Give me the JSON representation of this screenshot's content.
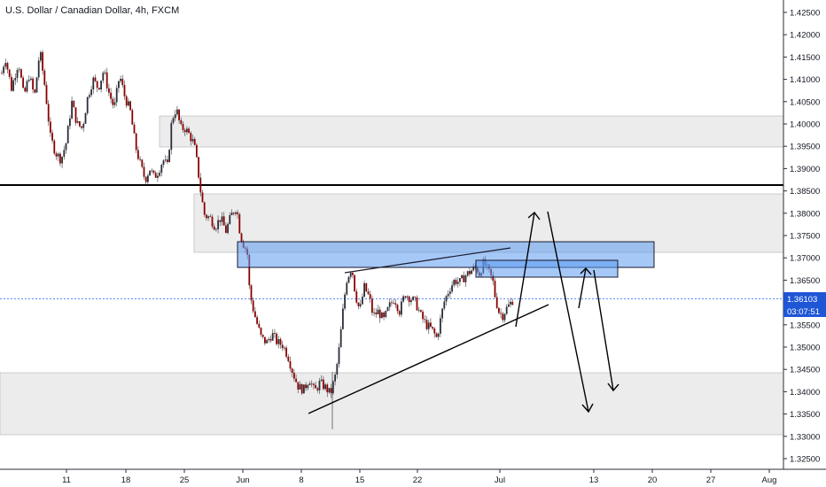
{
  "chart_data": {
    "type": "candlestick",
    "title": "U.S. Dollar / Canadian Dollar, 4h, FXCM",
    "y_ticks": [
      "1.42500",
      "1.42000",
      "1.41500",
      "1.41000",
      "1.40500",
      "1.40000",
      "1.39500",
      "1.39000",
      "1.38500",
      "1.38000",
      "1.37500",
      "1.37000",
      "1.36500",
      "1.36000",
      "1.35500",
      "1.35000",
      "1.34500",
      "1.34000",
      "1.33500",
      "1.33000",
      "1.32500"
    ],
    "y_range": [
      1.3215,
      1.4285
    ],
    "x_ticks": [
      "11",
      "18",
      "25",
      "Jun",
      "8",
      "15",
      "22",
      "Jul",
      "13",
      "20",
      "27",
      "Aug"
    ],
    "last_price": "1.36103",
    "countdown": "03:07:51",
    "colors": {
      "up_candle": "#2a2e39",
      "down_candle": "#8b0000",
      "wick": "#555555",
      "zone_gray": "#e0e0e0",
      "zone_blue": "#5b9bf0",
      "last_price_line": "#2962ff",
      "badge": "#1e56d6"
    },
    "close_path": [
      [
        0,
        1.4105
      ],
      [
        5,
        1.415
      ],
      [
        12,
        1.408
      ],
      [
        20,
        1.414
      ],
      [
        26,
        1.406
      ],
      [
        32,
        1.411
      ],
      [
        38,
        1.406
      ],
      [
        44,
        1.4165
      ],
      [
        50,
        1.408
      ],
      [
        56,
        1.397
      ],
      [
        62,
        1.3935
      ],
      [
        68,
        1.392
      ],
      [
        74,
        1.396
      ],
      [
        80,
        1.405
      ],
      [
        86,
        1.4
      ],
      [
        92,
        1.399
      ],
      [
        98,
        1.406
      ],
      [
        104,
        1.41
      ],
      [
        110,
        1.408
      ],
      [
        116,
        1.412
      ],
      [
        122,
        1.407
      ],
      [
        128,
        1.4035
      ],
      [
        134,
        1.411
      ],
      [
        140,
        1.406
      ],
      [
        146,
        1.403
      ],
      [
        152,
        1.395
      ],
      [
        158,
        1.3905
      ],
      [
        163,
        1.3875
      ],
      [
        168,
        1.39
      ],
      [
        173,
        1.388
      ],
      [
        178,
        1.3895
      ],
      [
        183,
        1.392
      ],
      [
        188,
        1.3905
      ],
      [
        193,
        1.401
      ],
      [
        198,
        1.4035
      ],
      [
        203,
        1.399
      ],
      [
        208,
        1.399
      ],
      [
        213,
        1.3975
      ],
      [
        218,
        1.3955
      ],
      [
        222,
        1.3905
      ],
      [
        226,
        1.384
      ],
      [
        230,
        1.3795
      ],
      [
        236,
        1.379
      ],
      [
        242,
        1.377
      ],
      [
        248,
        1.379
      ],
      [
        254,
        1.376
      ],
      [
        260,
        1.3795
      ],
      [
        266,
        1.3815
      ],
      [
        270,
        1.3755
      ],
      [
        274,
        1.373
      ],
      [
        278,
        1.3715
      ],
      [
        280,
        1.364
      ],
      [
        283,
        1.36
      ],
      [
        288,
        1.356
      ],
      [
        294,
        1.352
      ],
      [
        300,
        1.351
      ],
      [
        306,
        1.353
      ],
      [
        312,
        1.351
      ],
      [
        318,
        1.3505
      ],
      [
        324,
        1.348
      ],
      [
        330,
        1.344
      ],
      [
        336,
        1.341
      ],
      [
        342,
        1.3405
      ],
      [
        348,
        1.343
      ],
      [
        354,
        1.34
      ],
      [
        360,
        1.342
      ],
      [
        366,
        1.341
      ],
      [
        372,
        1.3395
      ],
      [
        378,
        1.344
      ],
      [
        382,
        1.35
      ],
      [
        386,
        1.358
      ],
      [
        390,
        1.365
      ],
      [
        396,
        1.368
      ],
      [
        400,
        1.362
      ],
      [
        405,
        1.358
      ],
      [
        410,
        1.3635
      ],
      [
        416,
        1.361
      ],
      [
        420,
        1.357
      ],
      [
        426,
        1.358
      ],
      [
        432,
        1.356
      ],
      [
        438,
        1.359
      ],
      [
        444,
        1.361
      ],
      [
        450,
        1.358
      ],
      [
        456,
        1.362
      ],
      [
        462,
        1.361
      ],
      [
        468,
        1.36
      ],
      [
        474,
        1.357
      ],
      [
        480,
        1.355
      ],
      [
        486,
        1.354
      ],
      [
        492,
        1.352
      ],
      [
        496,
        1.356
      ],
      [
        500,
        1.36
      ],
      [
        506,
        1.363
      ],
      [
        512,
        1.365
      ],
      [
        518,
        1.3645
      ],
      [
        524,
        1.366
      ],
      [
        530,
        1.367
      ],
      [
        536,
        1.368
      ],
      [
        540,
        1.3665
      ],
      [
        545,
        1.369
      ],
      [
        550,
        1.367
      ],
      [
        555,
        1.365
      ],
      [
        558,
        1.361
      ],
      [
        562,
        1.358
      ],
      [
        566,
        1.357
      ],
      [
        570,
        1.3585
      ],
      [
        574,
        1.3595
      ],
      [
        579,
        1.361
      ]
    ]
  }
}
